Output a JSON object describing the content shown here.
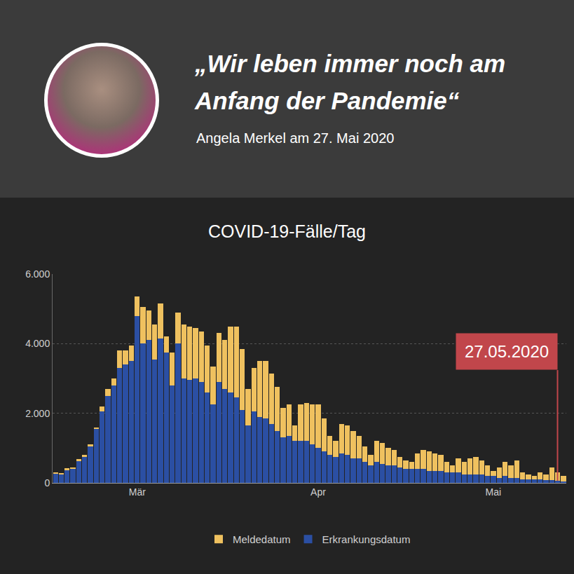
{
  "header": {
    "quote": "„Wir leben immer noch am Anfang der Pandemie“",
    "attribution": "Angela Merkel am 27. Mai 2020"
  },
  "chart_data": {
    "type": "bar",
    "title": "COVID-19-Fälle/Tag",
    "categories": [
      null,
      null,
      null,
      null,
      null,
      null,
      null,
      null,
      null,
      null,
      null,
      null,
      null,
      null,
      "Mär",
      null,
      null,
      null,
      null,
      null,
      null,
      null,
      null,
      null,
      null,
      null,
      null,
      null,
      null,
      null,
      null,
      null,
      null,
      null,
      null,
      null,
      null,
      null,
      null,
      null,
      null,
      null,
      null,
      null,
      null,
      "Apr",
      null,
      null,
      null,
      null,
      null,
      null,
      null,
      null,
      null,
      null,
      null,
      null,
      null,
      null,
      null,
      null,
      null,
      null,
      null,
      null,
      null,
      null,
      null,
      null,
      null,
      null,
      null,
      null,
      null,
      "Mai",
      null,
      null,
      null,
      null,
      null,
      null,
      null,
      null,
      null,
      null,
      null,
      null
    ],
    "series": [
      {
        "name": "Erkrankungsdatum",
        "color": "#2b4fa3",
        "values": [
          270,
          260,
          380,
          420,
          640,
          760,
          1050,
          1550,
          2050,
          2500,
          2800,
          3300,
          3400,
          3500,
          4800,
          4000,
          4100,
          3550,
          4150,
          3750,
          2800,
          4000,
          3000,
          2950,
          3000,
          2900,
          2600,
          2250,
          2900,
          2700,
          2600,
          2450,
          2100,
          1650,
          2050,
          1900,
          1850,
          1700,
          1500,
          1300,
          1350,
          1200,
          1200,
          1200,
          1100,
          1000,
          900,
          800,
          750,
          850,
          800,
          700,
          700,
          600,
          500,
          600,
          550,
          500,
          500,
          450,
          400,
          400,
          400,
          400,
          350,
          350,
          350,
          300,
          300,
          300,
          250,
          250,
          250,
          250,
          200,
          200,
          150,
          200,
          150,
          150,
          100,
          100,
          100,
          100,
          80,
          80,
          60,
          40
        ]
      },
      {
        "name": "Meldedatum",
        "color": "#efc15f",
        "values": [
          20,
          20,
          40,
          30,
          40,
          40,
          50,
          50,
          150,
          200,
          200,
          500,
          400,
          450,
          550,
          1050,
          850,
          1000,
          1000,
          450,
          950,
          900,
          1550,
          1550,
          1450,
          1450,
          1350,
          1100,
          1400,
          1400,
          1900,
          2050,
          1750,
          1050,
          1250,
          1600,
          1650,
          1450,
          1250,
          850,
          900,
          450,
          1050,
          1100,
          1150,
          1250,
          950,
          550,
          450,
          850,
          850,
          800,
          650,
          450,
          300,
          600,
          600,
          500,
          450,
          300,
          250,
          200,
          450,
          550,
          550,
          500,
          450,
          300,
          200,
          400,
          350,
          450,
          500,
          400,
          300,
          150,
          300,
          400,
          350,
          500,
          200,
          150,
          100,
          200,
          170,
          370,
          240,
          160
        ]
      }
    ],
    "stacked": true,
    "ylim": [
      0,
      6000
    ],
    "yticks": [
      0,
      {
        "value": 2000,
        "label": "2.000"
      },
      {
        "value": 4000,
        "label": "4.000"
      },
      {
        "value": 6000,
        "label": "6.000"
      }
    ],
    "grid": true,
    "legend": "bottom",
    "annotations": [
      {
        "text": "27.05.2020",
        "x": 86
      }
    ]
  }
}
